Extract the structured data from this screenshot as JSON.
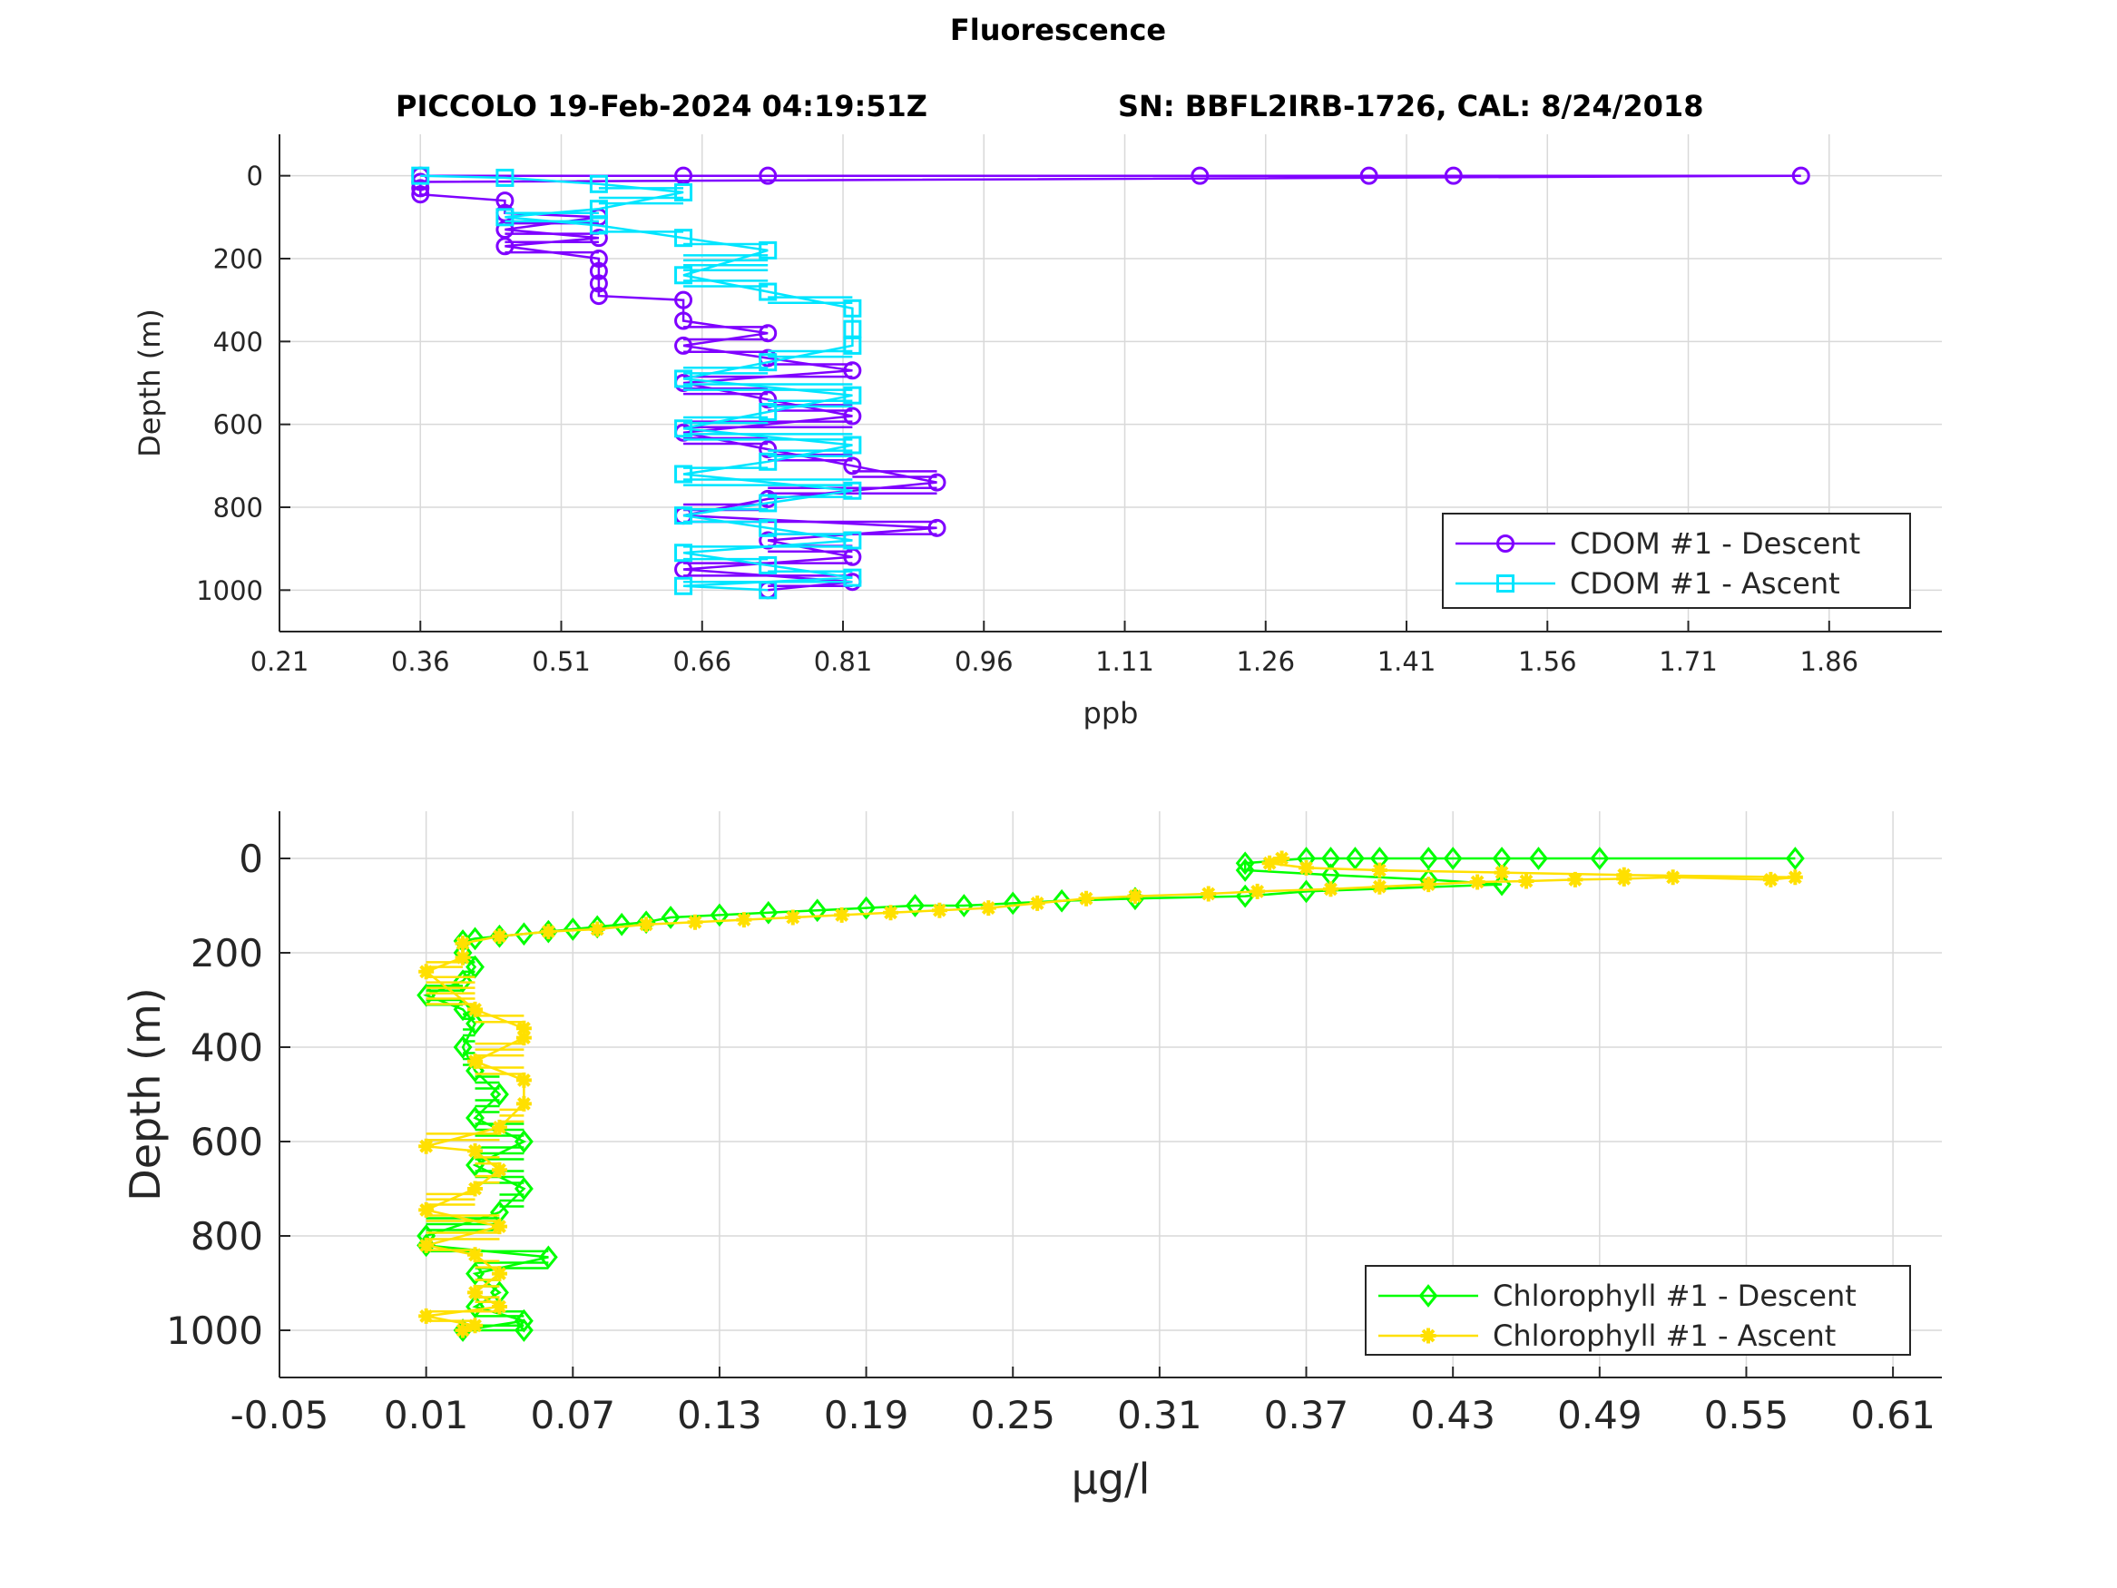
{
  "figure": {
    "title": "Fluorescence",
    "subtitle_left": "PICCOLO 19-Feb-2024 04:19:51Z",
    "subtitle_right": "SN: BBFL2IRB-1726, CAL: 8/24/2018"
  },
  "colors": {
    "cdom_descent": "#7f00ff",
    "cdom_ascent": "#00e5ff",
    "chl_descent": "#00ff00",
    "chl_ascent": "#ffe000",
    "grid": "#d9d9d9",
    "axis": "#262626"
  },
  "chart_data": [
    {
      "type": "line",
      "xlabel": "ppb",
      "ylabel": "Depth (m)",
      "xlim": [
        0.21,
        1.98
      ],
      "ylim": [
        1100,
        -100
      ],
      "y_reversed": true,
      "xticks": [
        "0.21",
        "0.36",
        "0.51",
        "0.66",
        "0.81",
        "0.96",
        "1.11",
        "1.26",
        "1.41",
        "1.56",
        "1.71",
        "1.86"
      ],
      "yticks": [
        "0",
        "200",
        "400",
        "600",
        "800",
        "1000"
      ],
      "grid": true,
      "legend_position": "lower-right",
      "series": [
        {
          "name": "CDOM #1 - Descent",
          "marker": "circle",
          "color": "#7f00ff",
          "points": [
            [
              0.36,
              0
            ],
            [
              0.64,
              0
            ],
            [
              0.73,
              0
            ],
            [
              1.19,
              0
            ],
            [
              1.37,
              0
            ],
            [
              1.46,
              0
            ],
            [
              1.83,
              0
            ],
            [
              0.36,
              15
            ],
            [
              0.36,
              30
            ],
            [
              0.36,
              45
            ],
            [
              0.45,
              60
            ],
            [
              0.45,
              90
            ],
            [
              0.55,
              100
            ],
            [
              0.45,
              130
            ],
            [
              0.55,
              150
            ],
            [
              0.45,
              170
            ],
            [
              0.55,
              200
            ],
            [
              0.55,
              230
            ],
            [
              0.55,
              260
            ],
            [
              0.55,
              290
            ],
            [
              0.64,
              300
            ],
            [
              0.64,
              350
            ],
            [
              0.73,
              380
            ],
            [
              0.64,
              410
            ],
            [
              0.73,
              440
            ],
            [
              0.82,
              470
            ],
            [
              0.64,
              500
            ],
            [
              0.73,
              540
            ],
            [
              0.82,
              580
            ],
            [
              0.64,
              620
            ],
            [
              0.73,
              660
            ],
            [
              0.82,
              700
            ],
            [
              0.91,
              740
            ],
            [
              0.73,
              780
            ],
            [
              0.64,
              820
            ],
            [
              0.91,
              850
            ],
            [
              0.73,
              880
            ],
            [
              0.82,
              920
            ],
            [
              0.64,
              950
            ],
            [
              0.82,
              980
            ],
            [
              0.73,
              1000
            ]
          ]
        },
        {
          "name": "CDOM #1 - Ascent",
          "marker": "square",
          "color": "#00e5ff",
          "points": [
            [
              0.73,
              1000
            ],
            [
              0.64,
              990
            ],
            [
              0.82,
              970
            ],
            [
              0.73,
              940
            ],
            [
              0.64,
              910
            ],
            [
              0.82,
              880
            ],
            [
              0.73,
              850
            ],
            [
              0.64,
              820
            ],
            [
              0.73,
              790
            ],
            [
              0.82,
              760
            ],
            [
              0.64,
              720
            ],
            [
              0.73,
              690
            ],
            [
              0.82,
              650
            ],
            [
              0.64,
              610
            ],
            [
              0.73,
              570
            ],
            [
              0.82,
              530
            ],
            [
              0.64,
              490
            ],
            [
              0.73,
              450
            ],
            [
              0.82,
              410
            ],
            [
              0.82,
              370
            ],
            [
              0.82,
              320
            ],
            [
              0.73,
              280
            ],
            [
              0.64,
              240
            ],
            [
              0.73,
              180
            ],
            [
              0.64,
              150
            ],
            [
              0.55,
              120
            ],
            [
              0.45,
              100
            ],
            [
              0.55,
              80
            ],
            [
              0.64,
              40
            ],
            [
              0.55,
              20
            ],
            [
              0.45,
              5
            ],
            [
              0.36,
              0
            ]
          ]
        }
      ]
    },
    {
      "type": "line",
      "xlabel": "μg/l",
      "ylabel": "Depth (m)",
      "xlim": [
        -0.05,
        0.63
      ],
      "ylim": [
        1100,
        -100
      ],
      "y_reversed": true,
      "xticks": [
        "-0.05",
        "0.01",
        "0.07",
        "0.13",
        "0.19",
        "0.25",
        "0.31",
        "0.37",
        "0.43",
        "0.49",
        "0.55",
        "0.61"
      ],
      "yticks": [
        "0",
        "200",
        "400",
        "600",
        "800",
        "1000"
      ],
      "grid": true,
      "legend_position": "lower-right",
      "series": [
        {
          "name": "Chlorophyll #1 - Descent",
          "marker": "diamond",
          "color": "#00ff00",
          "points": [
            [
              0.57,
              0
            ],
            [
              0.49,
              0
            ],
            [
              0.465,
              0
            ],
            [
              0.45,
              0
            ],
            [
              0.43,
              0
            ],
            [
              0.42,
              0
            ],
            [
              0.4,
              0
            ],
            [
              0.39,
              0
            ],
            [
              0.38,
              0
            ],
            [
              0.37,
              0
            ],
            [
              0.345,
              10
            ],
            [
              0.345,
              25
            ],
            [
              0.38,
              35
            ],
            [
              0.42,
              45
            ],
            [
              0.45,
              55
            ],
            [
              0.37,
              70
            ],
            [
              0.345,
              80
            ],
            [
              0.3,
              85
            ],
            [
              0.27,
              90
            ],
            [
              0.25,
              95
            ],
            [
              0.23,
              100
            ],
            [
              0.21,
              100
            ],
            [
              0.19,
              105
            ],
            [
              0.17,
              110
            ],
            [
              0.15,
              115
            ],
            [
              0.13,
              120
            ],
            [
              0.11,
              125
            ],
            [
              0.1,
              135
            ],
            [
              0.09,
              140
            ],
            [
              0.08,
              145
            ],
            [
              0.07,
              150
            ],
            [
              0.06,
              155
            ],
            [
              0.05,
              160
            ],
            [
              0.04,
              165
            ],
            [
              0.03,
              170
            ],
            [
              0.025,
              175
            ],
            [
              0.025,
              200
            ],
            [
              0.03,
              230
            ],
            [
              0.025,
              260
            ],
            [
              0.01,
              290
            ],
            [
              0.025,
              320
            ],
            [
              0.03,
              350
            ],
            [
              0.025,
              400
            ],
            [
              0.03,
              450
            ],
            [
              0.04,
              500
            ],
            [
              0.03,
              550
            ],
            [
              0.05,
              600
            ],
            [
              0.03,
              650
            ],
            [
              0.05,
              700
            ],
            [
              0.04,
              750
            ],
            [
              0.01,
              800
            ],
            [
              0.01,
              820
            ],
            [
              0.06,
              845
            ],
            [
              0.03,
              880
            ],
            [
              0.04,
              920
            ],
            [
              0.03,
              950
            ],
            [
              0.05,
              980
            ],
            [
              0.025,
              1000
            ],
            [
              0.05,
              1000
            ]
          ]
        },
        {
          "name": "Chlorophyll #1 - Ascent",
          "marker": "asterisk",
          "color": "#ffe000",
          "points": [
            [
              0.025,
              1000
            ],
            [
              0.03,
              990
            ],
            [
              0.01,
              970
            ],
            [
              0.04,
              950
            ],
            [
              0.03,
              920
            ],
            [
              0.04,
              880
            ],
            [
              0.03,
              840
            ],
            [
              0.01,
              820
            ],
            [
              0.04,
              780
            ],
            [
              0.01,
              745
            ],
            [
              0.03,
              700
            ],
            [
              0.04,
              660
            ],
            [
              0.03,
              620
            ],
            [
              0.01,
              610
            ],
            [
              0.04,
              570
            ],
            [
              0.05,
              520
            ],
            [
              0.05,
              470
            ],
            [
              0.03,
              430
            ],
            [
              0.05,
              380
            ],
            [
              0.05,
              360
            ],
            [
              0.03,
              320
            ],
            [
              0.01,
              240
            ],
            [
              0.025,
              210
            ],
            [
              0.025,
              180
            ],
            [
              0.04,
              165
            ],
            [
              0.06,
              155
            ],
            [
              0.08,
              150
            ],
            [
              0.1,
              140
            ],
            [
              0.12,
              135
            ],
            [
              0.14,
              130
            ],
            [
              0.16,
              125
            ],
            [
              0.18,
              120
            ],
            [
              0.2,
              115
            ],
            [
              0.22,
              110
            ],
            [
              0.24,
              105
            ],
            [
              0.26,
              95
            ],
            [
              0.28,
              85
            ],
            [
              0.3,
              80
            ],
            [
              0.33,
              75
            ],
            [
              0.35,
              70
            ],
            [
              0.38,
              65
            ],
            [
              0.4,
              60
            ],
            [
              0.42,
              55
            ],
            [
              0.44,
              50
            ],
            [
              0.46,
              48
            ],
            [
              0.48,
              45
            ],
            [
              0.5,
              43
            ],
            [
              0.52,
              40
            ],
            [
              0.56,
              45
            ],
            [
              0.57,
              40
            ],
            [
              0.5,
              35
            ],
            [
              0.45,
              30
            ],
            [
              0.4,
              25
            ],
            [
              0.37,
              20
            ],
            [
              0.355,
              10
            ],
            [
              0.36,
              0
            ]
          ]
        }
      ]
    }
  ]
}
